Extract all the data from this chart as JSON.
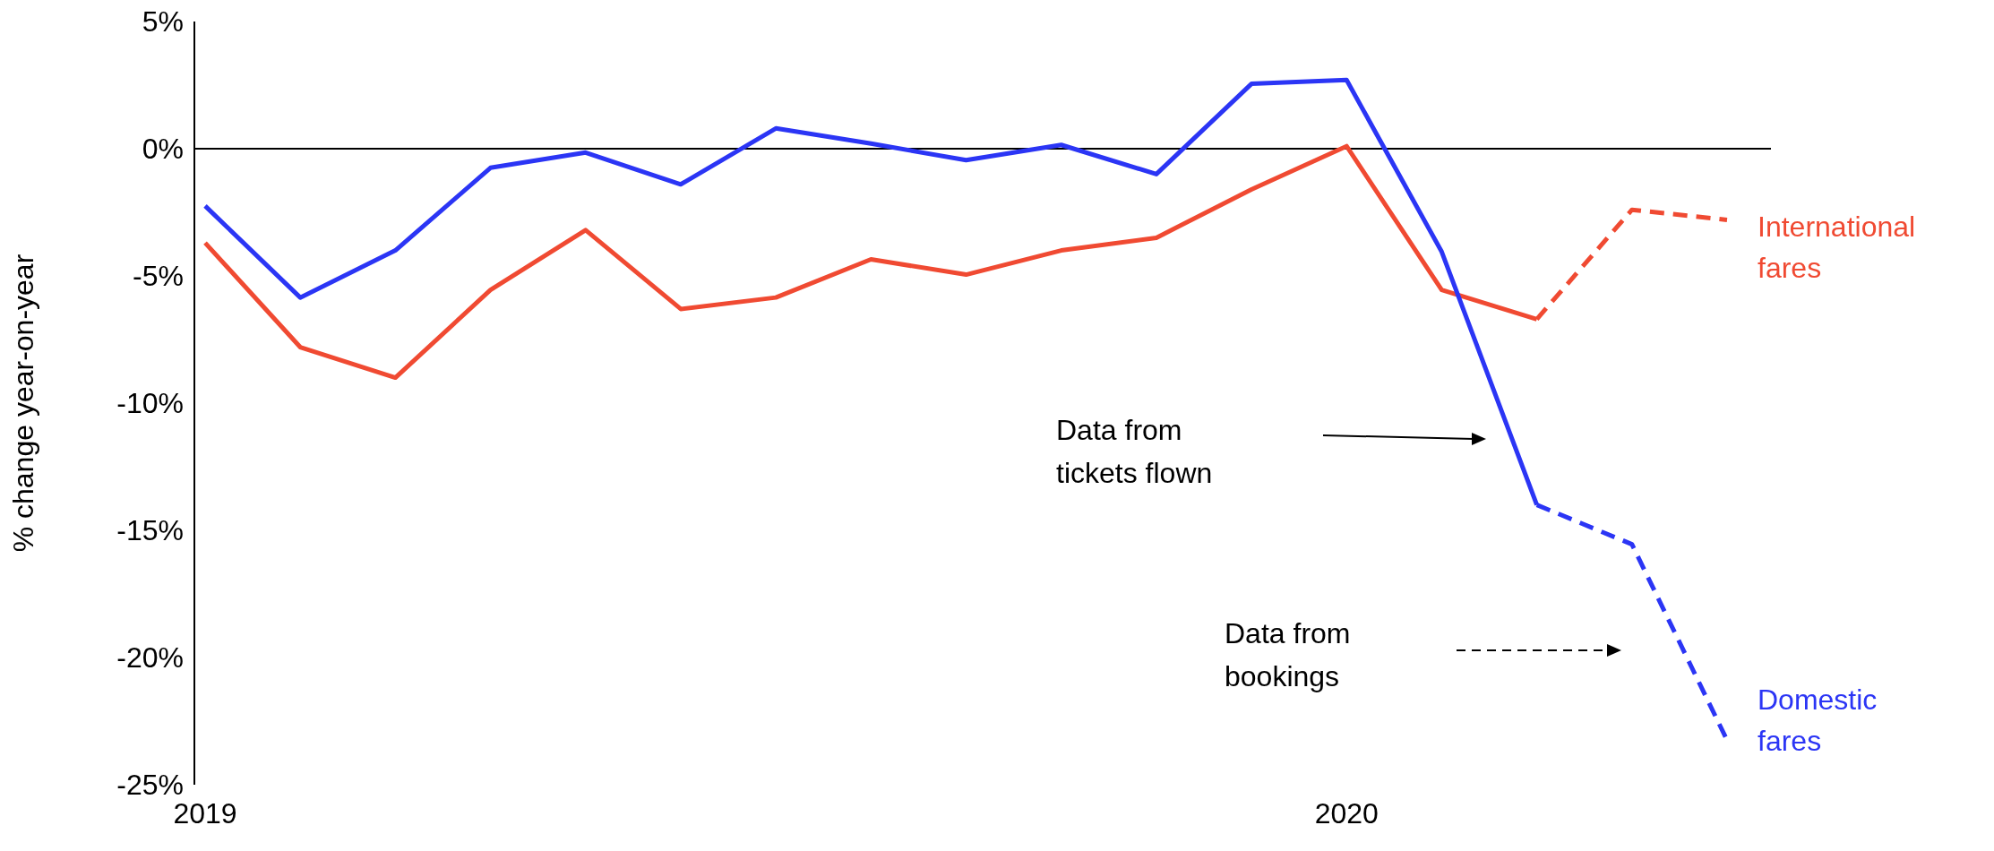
{
  "chart_data": {
    "type": "line",
    "ylabel": "% change year-on-year",
    "categories": [
      "2019",
      null,
      null,
      null,
      null,
      null,
      null,
      null,
      null,
      null,
      null,
      null,
      "2020",
      null,
      null,
      null,
      null
    ],
    "series": [
      {
        "color": "#f04a32",
        "line_style": "solid",
        "values": [
          -3.7,
          -7.8,
          -9.0,
          -5.55,
          -3.2,
          -6.3,
          -5.85,
          -4.35,
          -4.95,
          -4.0,
          -3.5,
          -1.6,
          0.1,
          -5.55,
          -6.7,
          null,
          null
        ]
      },
      {
        "name": "International fares",
        "color": "#f04a32",
        "line_style": "dashed",
        "values": [
          null,
          null,
          null,
          null,
          null,
          null,
          null,
          null,
          null,
          null,
          null,
          null,
          null,
          null,
          -6.7,
          -2.4,
          -2.8
        ]
      },
      {
        "color": "#2b35f5",
        "line_style": "solid",
        "values": [
          -2.25,
          -5.85,
          -4.0,
          -0.75,
          -0.15,
          -1.4,
          0.8,
          0.2,
          -0.45,
          0.15,
          -1.0,
          2.55,
          2.7,
          -4.05,
          -14.0,
          null,
          null
        ]
      },
      {
        "name": "Domestic fares",
        "color": "#2b35f5",
        "line_style": "dashed",
        "values": [
          null,
          null,
          null,
          null,
          null,
          null,
          null,
          null,
          null,
          null,
          null,
          null,
          null,
          null,
          -14.0,
          -15.55,
          -23.25
        ]
      }
    ],
    "ylim": [
      -25,
      5
    ],
    "yticks": [
      {
        "value": -25,
        "label": "-25%"
      },
      {
        "value": -20,
        "label": "-20%"
      },
      {
        "value": -15,
        "label": "-15%"
      },
      {
        "value": -10,
        "label": "-10%"
      },
      {
        "value": -5,
        "label": "-5%"
      },
      {
        "value": 0,
        "label": "0%"
      },
      {
        "value": 5,
        "label": "5%"
      }
    ],
    "annotations": [
      "Data from tickets flown",
      "Data from bookings"
    ],
    "ref_lines": [
      {
        "axis": "y",
        "value": 0,
        "color": "#000000"
      }
    ],
    "grid": false,
    "legend": false,
    "marker": "none"
  }
}
